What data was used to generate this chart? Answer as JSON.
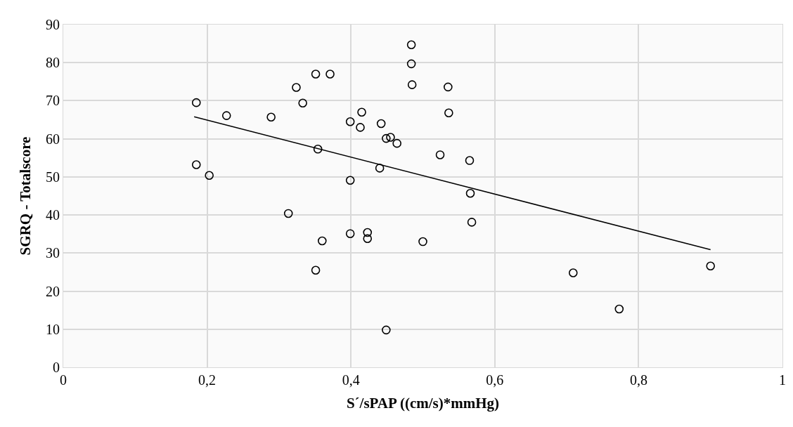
{
  "chart_data": {
    "type": "scatter",
    "xlabel": "S´/sPAP ((cm/s)*mmHg)",
    "ylabel": "SGRQ - Totalscore",
    "xlim": [
      0,
      1
    ],
    "xticks": [
      0,
      {
        "value": 0.2,
        "label": "0,2"
      },
      {
        "value": 0.4,
        "label": "0,4"
      },
      {
        "value": 0.6,
        "label": "0,6"
      },
      {
        "value": 0.8,
        "label": "0,8"
      },
      1
    ],
    "ylim": [
      0,
      90
    ],
    "yticks": [
      0,
      10,
      20,
      30,
      40,
      50,
      60,
      70,
      80,
      90
    ],
    "grid": true,
    "series": [
      {
        "color": "#000000",
        "marker": "circle",
        "x": [
          0.185,
          0.185,
          0.203,
          0.227,
          0.289,
          0.313,
          0.324,
          0.333,
          0.351,
          0.371,
          0.354,
          0.36,
          0.351,
          0.399,
          0.399,
          0.399,
          0.413,
          0.415,
          0.423,
          0.423,
          0.44,
          0.442,
          0.449,
          0.455,
          0.464,
          0.449,
          0.484,
          0.484,
          0.485,
          0.5,
          0.524,
          0.535,
          0.536,
          0.565,
          0.566,
          0.568,
          0.709,
          0.773,
          0.9
        ],
        "values": [
          69.5,
          53.2,
          50.4,
          66.1,
          65.7,
          40.4,
          73.5,
          69.4,
          77,
          77,
          57.3,
          33.2,
          25.5,
          64.5,
          49.1,
          35.1,
          63,
          67,
          35.4,
          33.8,
          52.3,
          64,
          60.1,
          60.4,
          58.8,
          9.8,
          84.7,
          79.7,
          74.2,
          33,
          55.8,
          73.6,
          66.8,
          54.3,
          45.7,
          38.1,
          24.8,
          15.3,
          26.6
        ]
      },
      {
        "type": "line",
        "color": "#000000",
        "marker": "none",
        "line_style": "solid",
        "x": [
          0.182,
          0.9
        ],
        "values": [
          65.8,
          30.9
        ]
      }
    ]
  }
}
